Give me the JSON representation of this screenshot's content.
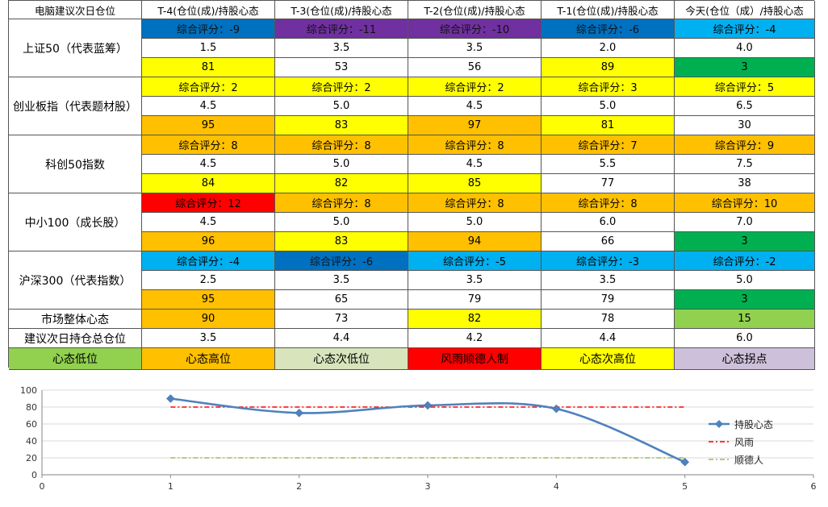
{
  "colors": {
    "yellow": "#FFFF00",
    "orange": "#FFC000",
    "green": "#00B050",
    "lightgreen": "#92D050",
    "lightblue": "#00B0F0",
    "blue": "#0070C0",
    "purple": "#7030A0",
    "red": "#FF0000",
    "paleGreen": "#D8E4BC",
    "lavender": "#CCC0DA",
    "white": "#FFFFFF"
  },
  "table": {
    "corner": "电脑建议次日仓位",
    "columns": [
      "T-4(仓位(成)/持股心态",
      "T-3(仓位(成)/持股心态",
      "T-2(仓位(成)/持股心态",
      "T-1(仓位(成)/持股心态",
      "今天(仓位（成）/持股心态"
    ],
    "indices": [
      {
        "label": "上证50（代表蓝筹）",
        "score": [
          "综合评分：-9",
          "综合评分：-11",
          "综合评分：-10",
          "综合评分：-6",
          "综合评分：-4"
        ],
        "score_colors": [
          "blue",
          "purple",
          "purple",
          "blue",
          "lightblue"
        ],
        "position": [
          "1.5",
          "3.5",
          "3.5",
          "2.0",
          "4.0"
        ],
        "mood": [
          "81",
          "53",
          "56",
          "89",
          "3"
        ],
        "mood_colors": [
          "yellow",
          "white",
          "white",
          "yellow",
          "green"
        ]
      },
      {
        "label": "创业板指（代表题材股）",
        "score": [
          "综合评分：2",
          "综合评分：2",
          "综合评分：2",
          "综合评分：3",
          "综合评分：5"
        ],
        "score_colors": [
          "yellow",
          "yellow",
          "yellow",
          "yellow",
          "yellow"
        ],
        "position": [
          "4.5",
          "5.0",
          "4.5",
          "5.0",
          "6.5"
        ],
        "mood": [
          "95",
          "83",
          "97",
          "81",
          "30"
        ],
        "mood_colors": [
          "orange",
          "yellow",
          "orange",
          "yellow",
          "white"
        ]
      },
      {
        "label": "科创50指数",
        "score": [
          "综合评分：8",
          "综合评分：8",
          "综合评分：8",
          "综合评分：7",
          "综合评分：9"
        ],
        "score_colors": [
          "orange",
          "orange",
          "orange",
          "orange",
          "orange"
        ],
        "position": [
          "4.5",
          "5.0",
          "4.5",
          "5.5",
          "7.5"
        ],
        "mood": [
          "84",
          "82",
          "85",
          "77",
          "38"
        ],
        "mood_colors": [
          "yellow",
          "yellow",
          "yellow",
          "white",
          "white"
        ]
      },
      {
        "label": "中小100（成长股）",
        "score": [
          "综合评分：12",
          "综合评分：8",
          "综合评分：8",
          "综合评分：8",
          "综合评分：10"
        ],
        "score_colors": [
          "red",
          "orange",
          "orange",
          "orange",
          "orange"
        ],
        "position": [
          "4.5",
          "5.0",
          "5.0",
          "6.0",
          "7.0"
        ],
        "mood": [
          "96",
          "83",
          "94",
          "66",
          "3"
        ],
        "mood_colors": [
          "orange",
          "yellow",
          "orange",
          "white",
          "green"
        ]
      },
      {
        "label": "沪深300（代表指数）",
        "score": [
          "综合评分：-4",
          "综合评分：-6",
          "综合评分：-5",
          "综合评分：-3",
          "综合评分：-2"
        ],
        "score_colors": [
          "lightblue",
          "blue",
          "lightblue",
          "lightblue",
          "lightblue"
        ],
        "position": [
          "2.5",
          "3.5",
          "3.5",
          "3.5",
          "5.0"
        ],
        "mood": [
          "95",
          "65",
          "79",
          "79",
          "3"
        ],
        "mood_colors": [
          "orange",
          "white",
          "white",
          "white",
          "green"
        ]
      }
    ],
    "market": {
      "label": "市场整体心态",
      "values": [
        "90",
        "73",
        "82",
        "78",
        "15"
      ],
      "colors": [
        "orange",
        "white",
        "yellow",
        "white",
        "lightgreen"
      ]
    },
    "total": {
      "label": "建议次日持仓总仓位",
      "values": [
        "3.5",
        "4.4",
        "4.2",
        "4.4",
        "6.0"
      ]
    },
    "legend": [
      {
        "label": "心态低位",
        "color": "lightgreen"
      },
      {
        "label": "心态高位",
        "color": "orange"
      },
      {
        "label": "心态次低位",
        "color": "paleGreen"
      },
      {
        "label": "风雨顺德人制",
        "color": "red"
      },
      {
        "label": "心态次高位",
        "color": "yellow"
      },
      {
        "label": "心态拐点",
        "color": "lavender"
      }
    ]
  },
  "chart_data": {
    "type": "scatter",
    "xlim": [
      0,
      6
    ],
    "ylim": [
      0,
      100
    ],
    "x_ticks": [
      "0",
      "1",
      "2",
      "3",
      "4",
      "5",
      "6"
    ],
    "y_ticks": [
      "0",
      "20",
      "40",
      "60",
      "80",
      "100"
    ],
    "grid": "horizontal",
    "legend_position": "right",
    "series": [
      {
        "name": "持股心态",
        "style": "smooth-line-diamond",
        "color": "#4F81BD",
        "x": [
          1,
          2,
          3,
          4,
          5
        ],
        "y": [
          90,
          73,
          82,
          78,
          15
        ]
      },
      {
        "name": "风雨",
        "style": "dash-dot",
        "color": "#FF0000",
        "x": [
          1,
          5
        ],
        "y": [
          80,
          80
        ]
      },
      {
        "name": "顺德人",
        "style": "dash-dot",
        "color": "#9BBB59",
        "x": [
          1,
          5
        ],
        "y": [
          20,
          20
        ]
      }
    ]
  }
}
